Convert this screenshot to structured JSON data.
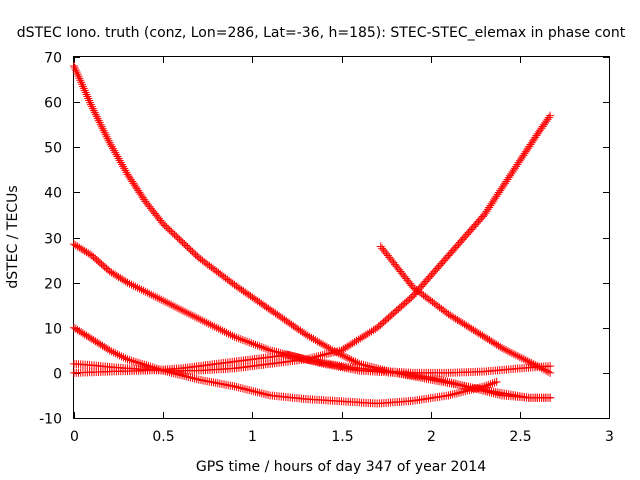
{
  "chart_data": {
    "type": "scatter",
    "title": "dSTEC Iono. truth (conz, Lon=286, Lat=-36, h=185): STEC-STEC_elemax in phase cont",
    "xlabel": "GPS time / hours of day 347 of year 2014",
    "ylabel": "dSTEC  / TECUs",
    "xlim": [
      0,
      3
    ],
    "ylim": [
      -10,
      70
    ],
    "xticks": [
      0,
      0.5,
      1,
      1.5,
      2,
      2.5,
      3
    ],
    "yticks": [
      -10,
      0,
      10,
      20,
      30,
      40,
      50,
      60,
      70
    ],
    "grid": false,
    "marker": "plus",
    "color": "#ff0000",
    "series": [
      {
        "x": [
          0.0,
          0.1,
          0.2,
          0.3,
          0.4,
          0.5,
          0.7,
          0.9,
          1.1,
          1.3,
          1.45,
          1.6,
          1.8,
          2.0,
          2.2,
          2.4,
          2.55,
          2.67
        ],
        "y": [
          68,
          59,
          51,
          44,
          38,
          33,
          25.5,
          19.5,
          14,
          8.5,
          5,
          2,
          0,
          -1.5,
          -3,
          -4.5,
          -5.5,
          -5.5
        ]
      },
      {
        "x": [
          0.0,
          0.1,
          0.2,
          0.3,
          0.4,
          0.5,
          0.7,
          0.9,
          1.1,
          1.3,
          1.5,
          1.7,
          1.9,
          2.1,
          2.3,
          2.5,
          2.67
        ],
        "y": [
          28.5,
          26,
          22.5,
          20,
          18,
          16,
          12,
          8,
          5,
          3,
          1.5,
          0.5,
          0,
          0,
          0.3,
          1,
          1.5
        ]
      },
      {
        "x": [
          0.0,
          0.1,
          0.2,
          0.3,
          0.5,
          0.7,
          0.9,
          1.1,
          1.3,
          1.5,
          1.7,
          1.9,
          2.1,
          2.3,
          2.37
        ],
        "y": [
          10,
          7.5,
          5,
          3,
          0.5,
          -1.5,
          -3,
          -5,
          -5.8,
          -6.3,
          -6.8,
          -6.2,
          -5,
          -3,
          -2
        ]
      },
      {
        "x": [
          0.0,
          0.1,
          0.2,
          0.3,
          0.5,
          0.7,
          0.9,
          1.1,
          1.3,
          1.5,
          1.7,
          1.9,
          2.1,
          2.3,
          2.5,
          2.6,
          2.67
        ],
        "y": [
          2,
          1.7,
          1.3,
          1,
          0.5,
          0.5,
          1,
          2,
          3,
          5,
          10,
          17,
          26,
          35,
          47,
          53,
          57
        ]
      },
      {
        "x": [
          0.0,
          0.2,
          0.4,
          0.6,
          0.8,
          1.0,
          1.2,
          1.4,
          1.6,
          1.8,
          2.0,
          2.2,
          2.4,
          2.55,
          2.67
        ],
        "y": [
          0,
          0.3,
          0.5,
          1,
          2,
          3,
          4,
          2,
          0.5,
          0,
          -1,
          -3,
          -5,
          -5.5,
          -5.5
        ]
      },
      {
        "x": [
          1.72,
          1.8,
          1.9,
          2.0,
          2.1,
          2.2,
          2.3,
          2.4,
          2.5,
          2.6,
          2.67
        ],
        "y": [
          28,
          24,
          19,
          16,
          13,
          10.5,
          8,
          5.5,
          3.5,
          1.5,
          0
        ]
      }
    ]
  }
}
